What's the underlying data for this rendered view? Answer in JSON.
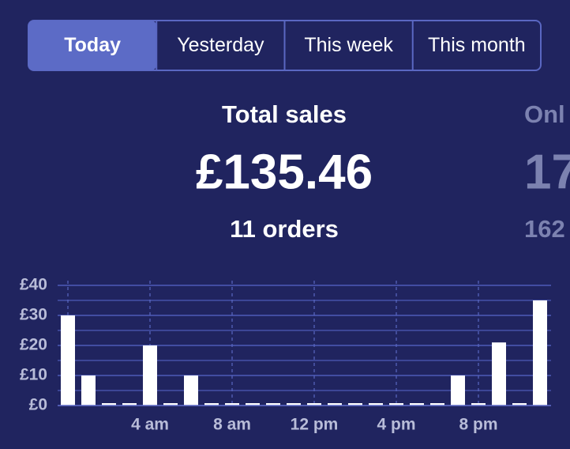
{
  "tabs": [
    {
      "label": "Today",
      "selected": true
    },
    {
      "label": "Yesterday",
      "selected": false
    },
    {
      "label": "This week",
      "selected": false
    },
    {
      "label": "This month",
      "selected": false
    }
  ],
  "cards": [
    {
      "title": "Total sales",
      "amount": "£135.46",
      "orders": "11 orders"
    },
    {
      "title": "Onl",
      "amount": "17",
      "orders": "162"
    }
  ],
  "chart_data": {
    "type": "bar",
    "categories": [
      null,
      null,
      null,
      null,
      "4 am",
      null,
      null,
      null,
      "8 am",
      null,
      null,
      null,
      "12 pm",
      null,
      null,
      null,
      "4 pm",
      null,
      null,
      null,
      "8 pm",
      null,
      null,
      null
    ],
    "values": [
      30,
      10,
      0,
      0,
      20,
      0,
      10,
      0,
      0,
      0,
      0,
      0,
      0,
      0,
      0,
      0,
      0,
      0,
      0,
      10,
      0,
      21,
      0,
      35
    ],
    "color": "#ffffff",
    "ylim": [
      0,
      40
    ],
    "yticks": [
      {
        "value": 0,
        "label": "£0"
      },
      {
        "value": 10,
        "label": "£10"
      },
      {
        "value": 20,
        "label": "£20"
      },
      {
        "value": 30,
        "label": "£30"
      },
      {
        "value": 40,
        "label": "£40"
      }
    ],
    "minor_yticks": [
      5,
      15,
      25,
      35
    ],
    "grid": true
  }
}
